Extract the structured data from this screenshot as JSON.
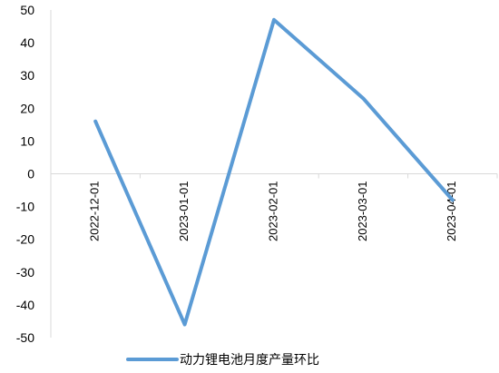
{
  "chart_data": {
    "type": "line",
    "title": "",
    "xlabel": "",
    "ylabel": "",
    "categories": [
      "2022-12-01",
      "2023-01-01",
      "2023-02-01",
      "2023-03-01",
      "2023-04-01"
    ],
    "series": [
      {
        "name": "动力锂电池月度产量环比",
        "values": [
          16,
          -46,
          47,
          23,
          -8
        ],
        "color": "#5B9BD5"
      }
    ],
    "ylim": [
      -50,
      50
    ],
    "yticks": [
      50,
      40,
      30,
      20,
      10,
      0,
      -10,
      -20,
      -30,
      -40,
      -50
    ],
    "grid": false,
    "legend_position": "bottom"
  }
}
